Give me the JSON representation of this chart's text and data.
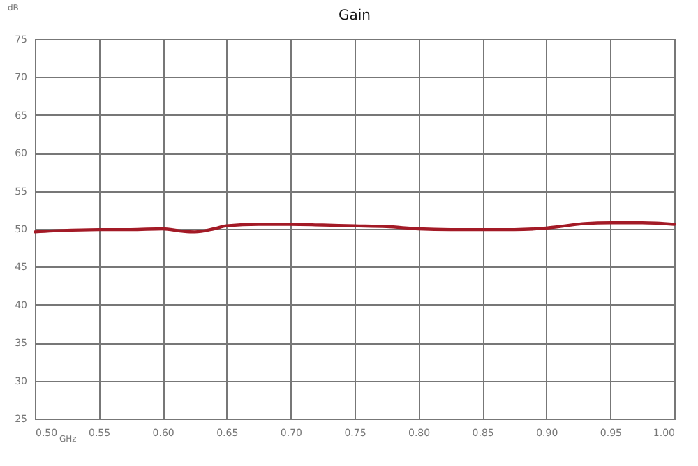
{
  "chart_data": {
    "type": "line",
    "title": "Gain",
    "xlabel": "GHz",
    "ylabel": "dB",
    "x": [
      0.5,
      0.525,
      0.55,
      0.575,
      0.6,
      0.615,
      0.625,
      0.64,
      0.65,
      0.675,
      0.7,
      0.725,
      0.75,
      0.775,
      0.8,
      0.825,
      0.85,
      0.875,
      0.9,
      0.915,
      0.93,
      0.95,
      0.975,
      1.0
    ],
    "series": [
      {
        "color": "#a31a26",
        "values": [
          49.6,
          49.8,
          49.9,
          49.9,
          50.0,
          49.7,
          49.6,
          50.0,
          50.4,
          50.6,
          50.6,
          50.5,
          50.4,
          50.3,
          50.0,
          49.9,
          49.9,
          49.9,
          50.1,
          50.4,
          50.7,
          50.8,
          50.8,
          50.6
        ]
      }
    ],
    "xlim": [
      0.5,
      1.0
    ],
    "xticks": [
      {
        "value": 0.5,
        "label": "0.50"
      },
      {
        "value": 0.55,
        "label": "0.55"
      },
      {
        "value": 0.6,
        "label": "0.60"
      },
      {
        "value": 0.65,
        "label": "0.65"
      },
      {
        "value": 0.7,
        "label": "0.70"
      },
      {
        "value": 0.75,
        "label": "0.75"
      },
      {
        "value": 0.8,
        "label": "0.80"
      },
      {
        "value": 0.85,
        "label": "0.85"
      },
      {
        "value": 0.9,
        "label": "0.90"
      },
      {
        "value": 0.95,
        "label": "0.95"
      },
      {
        "value": 1.0,
        "label": "1.00"
      }
    ],
    "ylim": [
      25,
      75
    ],
    "yticks": [
      25,
      30,
      35,
      40,
      45,
      50,
      55,
      60,
      65,
      70,
      75
    ],
    "grid": true,
    "marker": "none",
    "line_style": "solid"
  }
}
